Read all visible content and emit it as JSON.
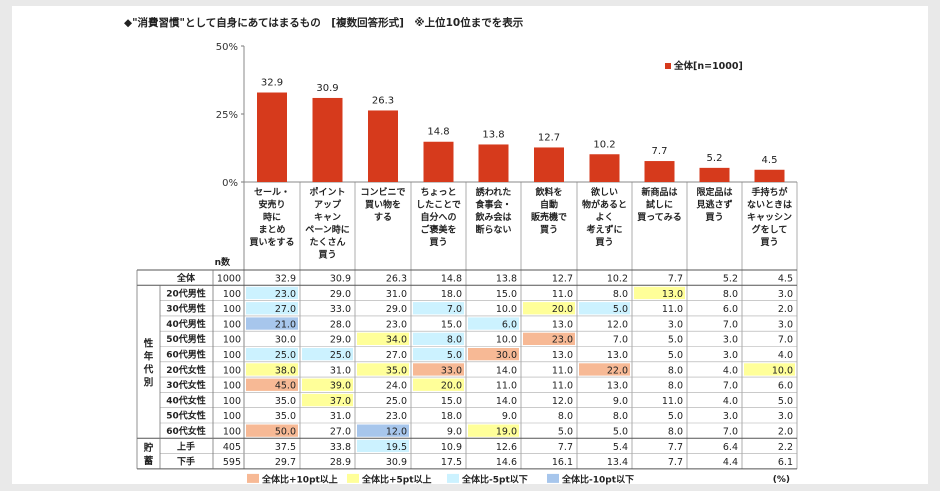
{
  "title": "◆\"消費習慣\"として自身にあてはまるもの　[複数回答形式]　※上位10位までを表示",
  "chart_data": {
    "type": "bar",
    "ylim": [
      0,
      50
    ],
    "yticks": [
      "0%",
      "25%",
      "50%"
    ],
    "ytick_values": [
      0,
      25,
      50
    ],
    "bar_color": "#d63a1c",
    "legend": "全体[n=1000]",
    "legend_position": "top-right",
    "n_header": "n数",
    "categories": [
      [
        "セール・",
        "安売り",
        "時に",
        "まとめ",
        "買いをする"
      ],
      [
        "ポイント",
        "アップ",
        "キャン",
        "ペーン時に",
        "たくさん",
        "買う"
      ],
      [
        "コンビニで",
        "買い物を",
        "する"
      ],
      [
        "ちょっと",
        "したことで",
        "自分への",
        "ご褒美を",
        "買う"
      ],
      [
        "誘われた",
        "食事会・",
        "飲み会は",
        "断らない"
      ],
      [
        "飲料を",
        "自動",
        "販売機で",
        "買う"
      ],
      [
        "欲しい",
        "物があると",
        "よく",
        "考えずに",
        "買う"
      ],
      [
        "新商品は",
        "試しに",
        "買ってみる"
      ],
      [
        "限定品は",
        "見逃さず",
        "買う"
      ],
      [
        "手持ちが",
        "ないときは",
        "キャッシン",
        "グをして",
        "買う"
      ]
    ],
    "values": [
      32.9,
      30.9,
      26.3,
      14.8,
      13.8,
      12.7,
      10.2,
      7.7,
      5.2,
      4.5
    ],
    "table": {
      "groups": [
        {
          "label": "",
          "rows": [
            0
          ]
        },
        {
          "label": "性年代別",
          "rows": [
            1,
            2,
            3,
            4,
            5,
            6,
            7,
            8,
            9,
            10
          ]
        },
        {
          "label": "貯蓄",
          "rows": [
            11,
            12
          ]
        }
      ],
      "rows": [
        {
          "label": "全体",
          "n": "1000",
          "values": [
            "32.9",
            "30.9",
            "26.3",
            "14.8",
            "13.8",
            "12.7",
            "10.2",
            "7.7",
            "5.2",
            "4.5"
          ],
          "hl": [
            0,
            0,
            0,
            0,
            0,
            0,
            0,
            0,
            0,
            0
          ]
        },
        {
          "label": "20代男性",
          "n": "100",
          "values": [
            "23.0",
            "29.0",
            "31.0",
            "18.0",
            "15.0",
            "11.0",
            "8.0",
            "13.0",
            "8.0",
            "3.0"
          ],
          "hl": [
            3,
            0,
            0,
            0,
            0,
            0,
            0,
            2,
            0,
            0
          ]
        },
        {
          "label": "30代男性",
          "n": "100",
          "values": [
            "27.0",
            "33.0",
            "29.0",
            "7.0",
            "10.0",
            "20.0",
            "5.0",
            "11.0",
            "6.0",
            "2.0"
          ],
          "hl": [
            3,
            0,
            0,
            3,
            0,
            2,
            3,
            0,
            0,
            0
          ]
        },
        {
          "label": "40代男性",
          "n": "100",
          "values": [
            "21.0",
            "28.0",
            "23.0",
            "15.0",
            "6.0",
            "13.0",
            "12.0",
            "3.0",
            "7.0",
            "3.0"
          ],
          "hl": [
            4,
            0,
            0,
            0,
            3,
            0,
            0,
            0,
            0,
            0
          ]
        },
        {
          "label": "50代男性",
          "n": "100",
          "values": [
            "30.0",
            "29.0",
            "34.0",
            "8.0",
            "10.0",
            "23.0",
            "7.0",
            "5.0",
            "3.0",
            "7.0"
          ],
          "hl": [
            0,
            0,
            2,
            3,
            0,
            1,
            0,
            0,
            0,
            0
          ]
        },
        {
          "label": "60代男性",
          "n": "100",
          "values": [
            "25.0",
            "25.0",
            "27.0",
            "5.0",
            "30.0",
            "13.0",
            "13.0",
            "5.0",
            "3.0",
            "4.0"
          ],
          "hl": [
            3,
            3,
            0,
            3,
            1,
            0,
            0,
            0,
            0,
            0
          ]
        },
        {
          "label": "20代女性",
          "n": "100",
          "values": [
            "38.0",
            "31.0",
            "35.0",
            "33.0",
            "14.0",
            "11.0",
            "22.0",
            "8.0",
            "4.0",
            "10.0"
          ],
          "hl": [
            2,
            0,
            2,
            1,
            0,
            0,
            1,
            0,
            0,
            2
          ]
        },
        {
          "label": "30代女性",
          "n": "100",
          "values": [
            "45.0",
            "39.0",
            "24.0",
            "20.0",
            "11.0",
            "11.0",
            "13.0",
            "8.0",
            "7.0",
            "6.0"
          ],
          "hl": [
            1,
            2,
            0,
            2,
            0,
            0,
            0,
            0,
            0,
            0
          ]
        },
        {
          "label": "40代女性",
          "n": "100",
          "values": [
            "35.0",
            "37.0",
            "25.0",
            "15.0",
            "14.0",
            "12.0",
            "9.0",
            "11.0",
            "4.0",
            "5.0"
          ],
          "hl": [
            0,
            2,
            0,
            0,
            0,
            0,
            0,
            0,
            0,
            0
          ]
        },
        {
          "label": "50代女性",
          "n": "100",
          "values": [
            "35.0",
            "31.0",
            "23.0",
            "18.0",
            "9.0",
            "8.0",
            "8.0",
            "5.0",
            "3.0",
            "3.0"
          ],
          "hl": [
            0,
            0,
            0,
            0,
            0,
            0,
            0,
            0,
            0,
            0
          ]
        },
        {
          "label": "60代女性",
          "n": "100",
          "values": [
            "50.0",
            "27.0",
            "12.0",
            "9.0",
            "19.0",
            "5.0",
            "5.0",
            "8.0",
            "7.0",
            "2.0"
          ],
          "hl": [
            1,
            0,
            4,
            0,
            2,
            0,
            0,
            0,
            0,
            0
          ]
        },
        {
          "label": "上手",
          "n": "405",
          "values": [
            "37.5",
            "33.8",
            "19.5",
            "10.9",
            "12.6",
            "7.7",
            "5.4",
            "7.7",
            "6.4",
            "2.2"
          ],
          "hl": [
            0,
            0,
            3,
            0,
            0,
            0,
            0,
            0,
            0,
            0
          ]
        },
        {
          "label": "下手",
          "n": "595",
          "values": [
            "29.7",
            "28.9",
            "30.9",
            "17.5",
            "14.6",
            "16.1",
            "13.4",
            "7.7",
            "4.4",
            "6.1"
          ],
          "hl": [
            0,
            0,
            0,
            0,
            0,
            0,
            0,
            0,
            0,
            0
          ]
        }
      ]
    },
    "highlight_colors": {
      "1": "#f7b995",
      "2": "#ffff99",
      "3": "#ccf2ff",
      "4": "#a7c6ec"
    },
    "highlight_legend": [
      {
        "key": 1,
        "label": "全体比+10pt以上"
      },
      {
        "key": 2,
        "label": "全体比+5pt以上"
      },
      {
        "key": 3,
        "label": "全体比-5pt以下"
      },
      {
        "key": 4,
        "label": "全体比-10pt以下"
      }
    ],
    "unit": "(%)"
  }
}
